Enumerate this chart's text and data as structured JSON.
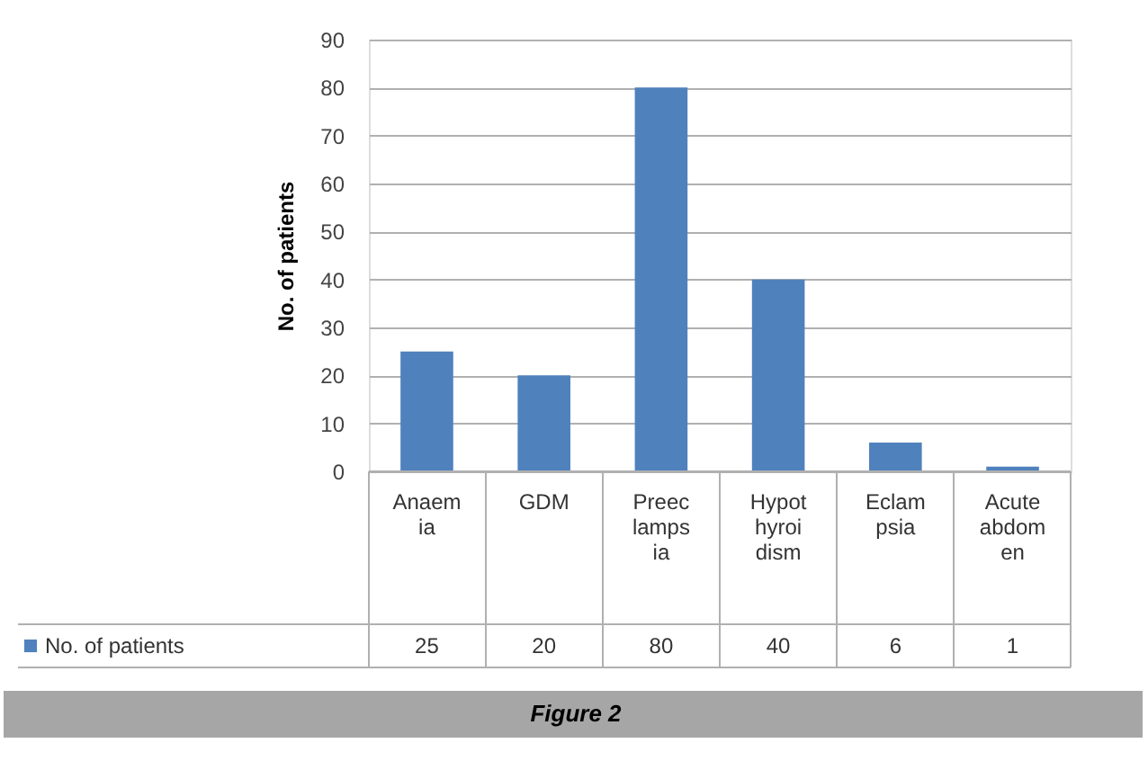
{
  "chart_data": {
    "type": "bar",
    "ylabel": "No. of patients",
    "categories": [
      "Anaemia",
      "GDM",
      "Preeclampsia",
      "Hypothyroidism",
      "Eclampsia",
      "Acute abdomen"
    ],
    "series": [
      {
        "name": "No. of patients",
        "color": "#4f81bd",
        "values": [
          25,
          20,
          80,
          40,
          6,
          1
        ]
      }
    ],
    "ylim": [
      0,
      90
    ],
    "yticks": [
      0,
      10,
      20,
      30,
      40,
      50,
      60,
      70,
      80,
      90
    ],
    "grid": "y",
    "data_labels": true,
    "legend": "bottom left",
    "annotations": [
      "Figure 2"
    ]
  }
}
